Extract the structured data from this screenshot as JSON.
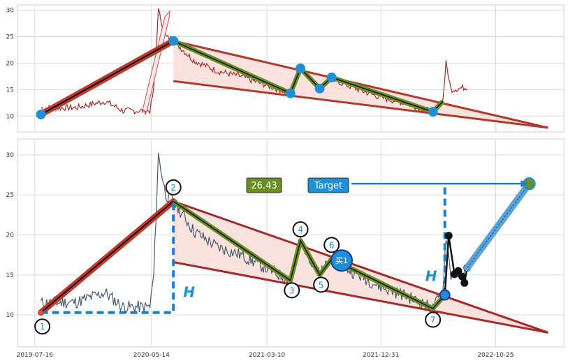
{
  "chart_data": [
    {
      "type": "line",
      "panel": "top",
      "ylim": [
        7,
        31
      ],
      "yticks": [
        10,
        15,
        20,
        25,
        30
      ],
      "grid": true,
      "pivots": [
        {
          "date": "2019-08-01",
          "y": 10.3
        },
        {
          "date": "2020-07-10",
          "y": 24.2
        },
        {
          "date": "2021-05-10",
          "y": 14.3
        },
        {
          "date": "2021-06-05",
          "y": 19.0
        },
        {
          "date": "2021-07-25",
          "y": 15.2
        },
        {
          "date": "2021-08-25",
          "y": 17.3
        },
        {
          "date": "2022-05-15",
          "y": 10.8
        }
      ],
      "channel_upper": [
        {
          "date": "2020-07-10",
          "y": 24.2
        },
        {
          "date": "2023-03-10",
          "y": 7.8
        }
      ],
      "channel_lower": [
        {
          "date": "2020-07-10",
          "y": 16.6
        },
        {
          "date": "2023-03-10",
          "y": 7.8
        }
      ],
      "price_series_color": "#a52a2a",
      "line_color": "#b03a2e",
      "zigzag_color": "#6b8e23",
      "pivot_color": "#1f8fd6",
      "fill_color": "#f8d9d6"
    },
    {
      "type": "line",
      "panel": "bottom",
      "ylim": [
        6,
        32
      ],
      "yticks": [
        10,
        15,
        20,
        25,
        30
      ],
      "x_tick_labels": [
        "2019-07-16",
        "2020-05-14",
        "2021-03-10",
        "2021-12-31",
        "2022-10-25"
      ],
      "grid": true,
      "pivots": [
        {
          "date": "2019-08-01",
          "y": 10.3,
          "label": "1"
        },
        {
          "date": "2020-07-10",
          "y": 24.2,
          "label": "2"
        },
        {
          "date": "2021-05-10",
          "y": 14.3,
          "label": "3"
        },
        {
          "date": "2021-06-05",
          "y": 19.3,
          "label": "4"
        },
        {
          "date": "2021-07-25",
          "y": 15.0,
          "label": "5"
        },
        {
          "date": "2021-08-25",
          "y": 17.0,
          "label": "6"
        },
        {
          "date": "2022-05-15",
          "y": 10.8,
          "label": "7"
        }
      ],
      "buy_point": {
        "date": "2021-09-20",
        "y": 16.8,
        "label": "买1"
      },
      "breakout_point": {
        "date": "2022-06-15",
        "y": 12.5
      },
      "target_point": {
        "date": "2023-01-20",
        "y": 26.4
      },
      "value_label": "26.43",
      "target_label": "Target",
      "height_label": "H",
      "black_path": [
        {
          "date": "2022-06-15",
          "y": 12.5
        },
        {
          "date": "2022-06-25",
          "y": 19.9
        },
        {
          "date": "2022-07-10",
          "y": 15.1
        },
        {
          "date": "2022-07-20",
          "y": 15.5
        },
        {
          "date": "2022-07-30",
          "y": 14.8
        },
        {
          "date": "2022-08-05",
          "y": 14.0
        },
        {
          "date": "2022-08-12",
          "y": 15.9
        }
      ],
      "channel_upper": [
        {
          "date": "2020-07-10",
          "y": 24.2
        },
        {
          "date": "2023-03-10",
          "y": 7.8
        }
      ],
      "channel_lower": [
        {
          "date": "2020-07-10",
          "y": 16.6
        },
        {
          "date": "2023-03-10",
          "y": 7.8
        }
      ],
      "price_series_color": "#4a5a6a",
      "label_color": "#1f8fd6",
      "value_box_color": "#6b8e23",
      "target_box_color": "#1f8fd6"
    }
  ]
}
